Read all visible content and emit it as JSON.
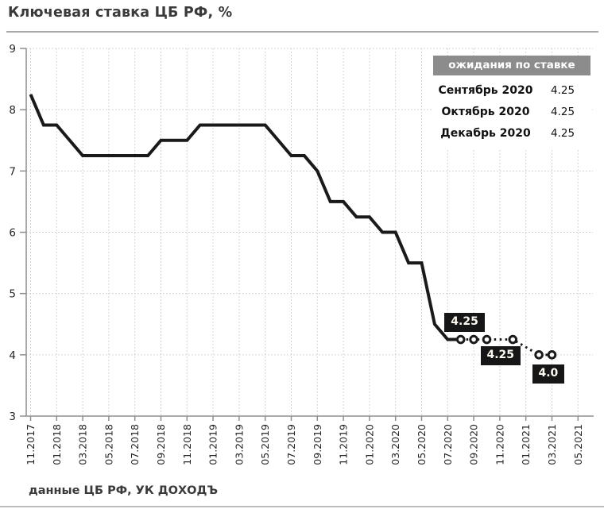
{
  "header": {
    "title": "Ключевая ставка ЦБ РФ, %"
  },
  "footer": {
    "source": "данные ЦБ РФ, УК ДОХОДЪ"
  },
  "legend": {
    "title": "ожидания по ставке",
    "rows": [
      {
        "label": "Сентябрь 2020",
        "value": "4.25"
      },
      {
        "label": "Октябрь 2020",
        "value": "4.25"
      },
      {
        "label": "Декабрь 2020",
        "value": "4.25"
      }
    ]
  },
  "colors": {
    "line": "#1a1a1a",
    "grid": "#c9c9c9",
    "axis": "#8f8f8f",
    "tick_text": "#262626",
    "legend_header_bg": "#8c8c8c",
    "label_bg": "#161616",
    "label_text": "#fdfaf1",
    "rule": "#a9a9a9"
  },
  "chart_data": {
    "type": "line",
    "title": "Ключевая ставка ЦБ РФ, %",
    "ylim": [
      3,
      9
    ],
    "y_ticks": [
      3,
      4,
      5,
      6,
      7,
      8,
      9
    ],
    "x_tick_labels": [
      "11.2017",
      "01.2018",
      "03.2018",
      "05.2018",
      "07.2018",
      "09.2018",
      "11.2018",
      "01.2019",
      "03.2019",
      "05.2019",
      "07.2019",
      "09.2019",
      "11.2019",
      "01.2020",
      "03.2020",
      "05.2020",
      "07.2020",
      "09.2020",
      "11.2020",
      "01.2021",
      "03.2021",
      "05.2021"
    ],
    "grid": true,
    "legend_position": "top-right",
    "series": [
      {
        "name": "key-rate-actual",
        "style": "solid",
        "x": [
          "11.2017",
          "12.2017",
          "01.2018",
          "02.2018",
          "03.2018",
          "04.2018",
          "05.2018",
          "06.2018",
          "07.2018",
          "08.2018",
          "09.2018",
          "10.2018",
          "11.2018",
          "12.2018",
          "01.2019",
          "02.2019",
          "03.2019",
          "04.2019",
          "05.2019",
          "06.2019",
          "07.2019",
          "08.2019",
          "09.2019",
          "10.2019",
          "11.2019",
          "12.2019",
          "01.2020",
          "02.2020",
          "03.2020",
          "04.2020",
          "05.2020",
          "06.2020",
          "07.2020",
          "08.2020"
        ],
        "values": [
          8.25,
          7.75,
          7.75,
          7.5,
          7.25,
          7.25,
          7.25,
          7.25,
          7.25,
          7.25,
          7.5,
          7.5,
          7.5,
          7.75,
          7.75,
          7.75,
          7.75,
          7.75,
          7.75,
          7.5,
          7.25,
          7.25,
          7.0,
          6.5,
          6.5,
          6.25,
          6.25,
          6.0,
          6.0,
          5.5,
          5.5,
          4.5,
          4.25,
          4.25
        ]
      },
      {
        "name": "key-rate-expectations",
        "style": "dotted-markers",
        "x": [
          "08.2020",
          "09.2020",
          "10.2020",
          "12.2020",
          "02.2021",
          "03.2021"
        ],
        "values": [
          4.25,
          4.25,
          4.25,
          4.25,
          4.0,
          4.0
        ]
      }
    ],
    "point_labels": [
      {
        "text": "4.25",
        "x": "07.2020",
        "value": 4.25,
        "placement": "above"
      },
      {
        "text": "4.25",
        "x": "10.2020",
        "value": 4.25,
        "placement": "below"
      },
      {
        "text": "4.0",
        "x": "03.2021",
        "value": 4.0,
        "placement": "below-left"
      }
    ]
  }
}
